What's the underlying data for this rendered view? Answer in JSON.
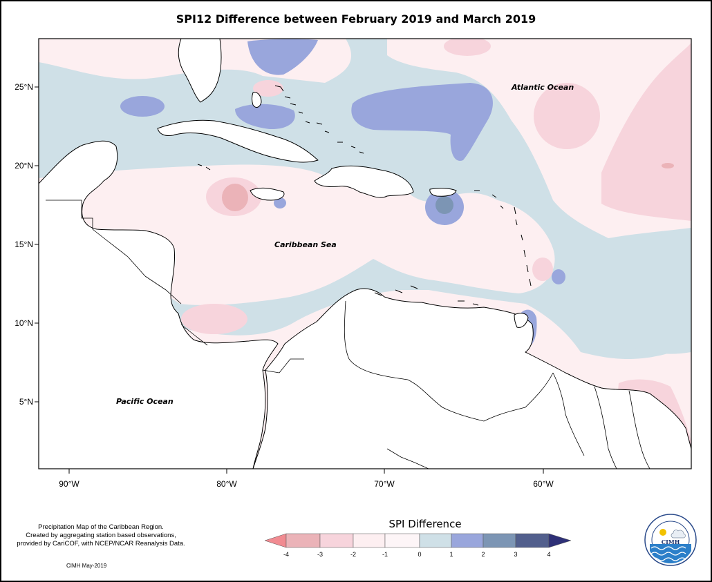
{
  "title": "SPI12 Difference between February 2019 and March 2019",
  "map": {
    "lat_ticks": [
      "25°N",
      "20°N",
      "15°N",
      "10°N",
      "5°N"
    ],
    "lon_ticks": [
      "90°W",
      "80°W",
      "70°W",
      "60°W"
    ],
    "ocean_labels": {
      "atlantic": "Atlantic Ocean",
      "caribbean": "Caribbean Sea",
      "pacific": "Pacific Ocean"
    }
  },
  "legend": {
    "title": "SPI Difference",
    "ticks": [
      "-4",
      "-3",
      "-2",
      "-1",
      "0",
      "1",
      "2",
      "3",
      "4"
    ],
    "colors": [
      "#f18b91",
      "#ebb3b8",
      "#f7d4dc",
      "#fdeff1",
      "#cfe0e7",
      "#99a6dc",
      "#7c95b4",
      "#525f8d",
      "#2e3077"
    ]
  },
  "notes": {
    "lines": [
      "Precipitation Map of the Caribbean Region.",
      "Created by aggregating station based observations,",
      "provided by CariCOF, with NCEP/NCAR Reanalysis Data."
    ],
    "date": "CIMH May-2019"
  },
  "logo": {
    "ring_text": "Caribbean Institute for Meteorology and Hydrology",
    "center_text": "CIMH"
  }
}
